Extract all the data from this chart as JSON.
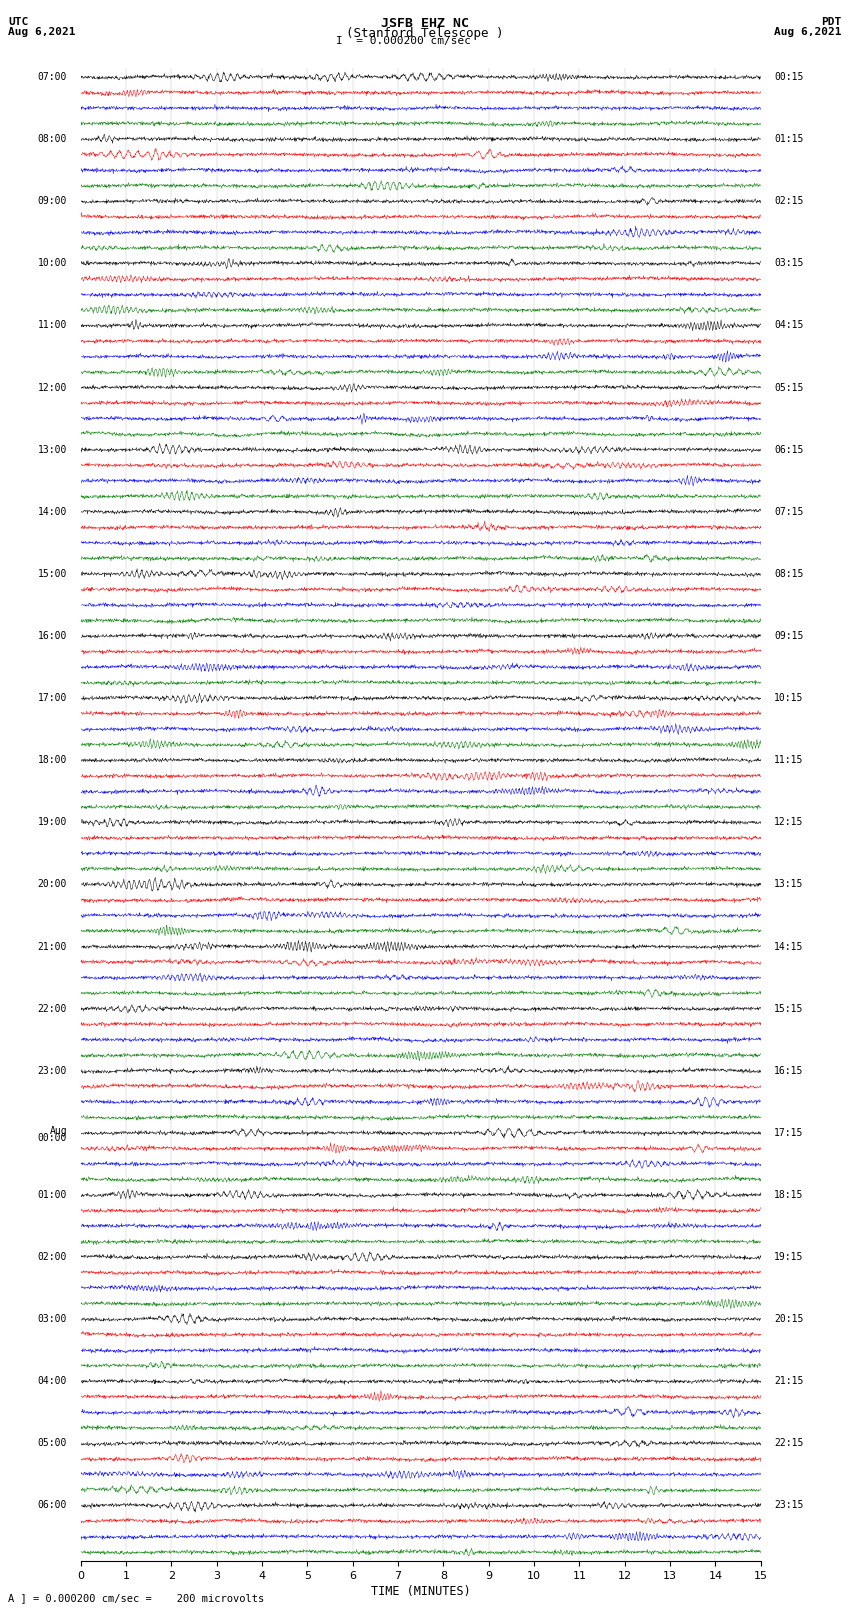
{
  "title_line1": "JSFB EHZ NC",
  "title_line2": "(Stanford Telescope )",
  "scale_label": "I  = 0.000200 cm/sec",
  "left_label_top": "UTC",
  "left_label_date": "Aug 6,2021",
  "right_label_top": "PDT",
  "right_label_date": "Aug 6,2021",
  "xlabel": "TIME (MINUTES)",
  "bottom_note": "] = 0.000200 cm/sec =    200 microvolts",
  "bottom_note_prefix": "A",
  "colors": [
    "black",
    "red",
    "blue",
    "green"
  ],
  "bg_color": "white",
  "num_rows": 96,
  "x_ticks": [
    0,
    1,
    2,
    3,
    4,
    5,
    6,
    7,
    8,
    9,
    10,
    11,
    12,
    13,
    14,
    15
  ],
  "left_times": [
    "07:00",
    "08:00",
    "09:00",
    "10:00",
    "11:00",
    "12:00",
    "13:00",
    "14:00",
    "15:00",
    "16:00",
    "17:00",
    "18:00",
    "19:00",
    "20:00",
    "21:00",
    "22:00",
    "23:00",
    "Aug\n00:00",
    "01:00",
    "02:00",
    "03:00",
    "04:00",
    "05:00",
    "06:00"
  ],
  "right_times": [
    "00:15",
    "01:15",
    "02:15",
    "03:15",
    "04:15",
    "05:15",
    "06:15",
    "07:15",
    "08:15",
    "09:15",
    "10:15",
    "11:15",
    "12:15",
    "13:15",
    "14:15",
    "15:15",
    "16:15",
    "17:15",
    "18:15",
    "19:15",
    "20:15",
    "21:15",
    "22:15",
    "23:15"
  ],
  "noise_base": 0.055,
  "spike_amp": 0.28,
  "seed": 42
}
